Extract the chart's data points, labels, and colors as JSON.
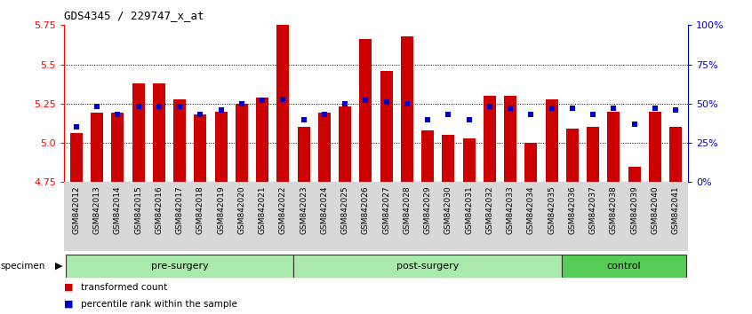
{
  "title": "GDS4345 / 229747_x_at",
  "samples": [
    "GSM842012",
    "GSM842013",
    "GSM842014",
    "GSM842015",
    "GSM842016",
    "GSM842017",
    "GSM842018",
    "GSM842019",
    "GSM842020",
    "GSM842021",
    "GSM842022",
    "GSM842023",
    "GSM842024",
    "GSM842025",
    "GSM842026",
    "GSM842027",
    "GSM842028",
    "GSM842029",
    "GSM842030",
    "GSM842031",
    "GSM842032",
    "GSM842033",
    "GSM842034",
    "GSM842035",
    "GSM842036",
    "GSM842037",
    "GSM842038",
    "GSM842039",
    "GSM842040",
    "GSM842041"
  ],
  "red_values": [
    5.06,
    5.19,
    5.19,
    5.38,
    5.38,
    5.28,
    5.18,
    5.2,
    5.25,
    5.29,
    5.75,
    5.1,
    5.19,
    5.23,
    5.66,
    5.46,
    5.68,
    5.08,
    5.05,
    5.03,
    5.3,
    5.3,
    5.0,
    5.28,
    5.09,
    5.1,
    5.2,
    4.85,
    5.2,
    5.1
  ],
  "blue_values": [
    35,
    48,
    43,
    48,
    48,
    48,
    43,
    46,
    50,
    52,
    53,
    40,
    43,
    50,
    52,
    51,
    50,
    40,
    43,
    40,
    48,
    47,
    43,
    47,
    47,
    43,
    47,
    37,
    47,
    46
  ],
  "groups": [
    {
      "label": "pre-surgery",
      "start": 0,
      "end": 11,
      "light": true
    },
    {
      "label": "post-surgery",
      "start": 11,
      "end": 24,
      "light": true
    },
    {
      "label": "control",
      "start": 24,
      "end": 30,
      "light": false
    }
  ],
  "ymin": 4.75,
  "ymax": 5.75,
  "yticks_left": [
    4.75,
    5.0,
    5.25,
    5.5,
    5.75
  ],
  "yticks_right_vals": [
    0,
    25,
    50,
    75,
    100
  ],
  "yticks_right_labels": [
    "0%",
    "25%",
    "50%",
    "75%",
    "100%"
  ],
  "bar_color": "#CC0000",
  "blue_color": "#0000CC",
  "bg_color": "#FFFFFF",
  "legend_red_label": "transformed count",
  "legend_blue_label": "percentile rank within the sample",
  "base_value": 4.75
}
